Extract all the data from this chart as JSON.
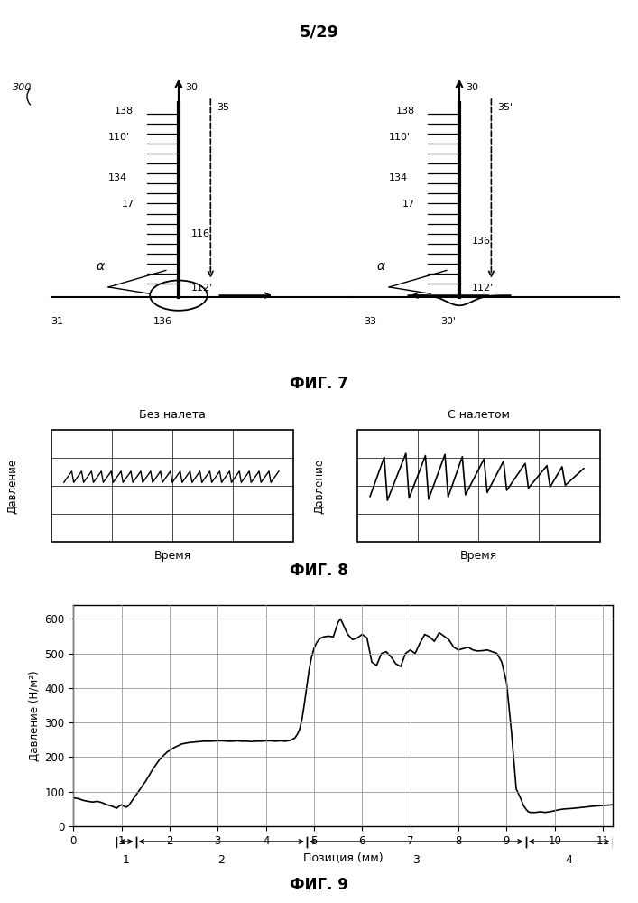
{
  "page_label": "5/29",
  "fig7_caption": "ФИГ. 7",
  "fig8_left_title": "Без налета",
  "fig8_right_title": "С налетом",
  "fig8_ylabel": "Давление",
  "fig8_xlabel": "Время",
  "fig8_caption": "ФИГ. 8",
  "fig9_ylabel": "Давление (Н/м²)",
  "fig9_xlabel": "Позиция (мм)",
  "fig9_caption": "ФИГ. 9",
  "fig9_xlim": [
    0,
    11.2
  ],
  "fig9_ylim": [
    0,
    640
  ],
  "fig9_yticks": [
    0,
    100,
    200,
    300,
    400,
    500,
    600
  ],
  "fig9_xticks": [
    0,
    1,
    2,
    3,
    4,
    5,
    6,
    7,
    8,
    9,
    10,
    11
  ],
  "fig9_data_x": [
    0.0,
    0.1,
    0.2,
    0.3,
    0.4,
    0.5,
    0.6,
    0.7,
    0.8,
    0.85,
    0.9,
    0.95,
    1.0,
    1.05,
    1.1,
    1.15,
    1.2,
    1.35,
    1.5,
    1.65,
    1.8,
    1.95,
    2.1,
    2.25,
    2.4,
    2.55,
    2.7,
    2.85,
    3.0,
    3.1,
    3.2,
    3.3,
    3.4,
    3.5,
    3.6,
    3.7,
    3.8,
    3.9,
    4.0,
    4.1,
    4.2,
    4.3,
    4.4,
    4.5,
    4.6,
    4.65,
    4.7,
    4.75,
    4.8,
    4.85,
    4.9,
    4.95,
    5.0,
    5.05,
    5.1,
    5.15,
    5.2,
    5.3,
    5.4,
    5.5,
    5.55,
    5.6,
    5.65,
    5.7,
    5.8,
    5.9,
    6.0,
    6.1,
    6.2,
    6.3,
    6.4,
    6.5,
    6.6,
    6.7,
    6.8,
    6.9,
    7.0,
    7.1,
    7.2,
    7.3,
    7.4,
    7.5,
    7.6,
    7.7,
    7.8,
    7.9,
    8.0,
    8.1,
    8.2,
    8.3,
    8.4,
    8.5,
    8.6,
    8.7,
    8.8,
    8.9,
    9.0,
    9.1,
    9.2,
    9.3,
    9.35,
    9.4,
    9.45,
    9.5,
    9.6,
    9.7,
    9.8,
    9.9,
    10.0,
    10.1,
    10.2,
    10.4,
    10.6,
    10.8,
    11.0,
    11.2
  ],
  "fig9_data_y": [
    82,
    80,
    75,
    72,
    70,
    72,
    68,
    62,
    58,
    55,
    52,
    58,
    62,
    58,
    55,
    60,
    70,
    100,
    130,
    165,
    195,
    215,
    228,
    238,
    242,
    244,
    246,
    246,
    247,
    247,
    246,
    246,
    247,
    246,
    246,
    245,
    246,
    246,
    247,
    247,
    246,
    247,
    246,
    248,
    255,
    265,
    280,
    310,
    355,
    405,
    455,
    490,
    515,
    530,
    540,
    545,
    548,
    550,
    548,
    590,
    600,
    585,
    570,
    555,
    540,
    545,
    555,
    545,
    475,
    465,
    500,
    505,
    490,
    470,
    462,
    500,
    510,
    500,
    530,
    555,
    548,
    535,
    560,
    550,
    540,
    518,
    510,
    514,
    518,
    510,
    507,
    508,
    510,
    505,
    500,
    475,
    415,
    275,
    108,
    78,
    60,
    50,
    42,
    40,
    40,
    42,
    40,
    42,
    45,
    48,
    50,
    52,
    55,
    58,
    60,
    62
  ],
  "fig9_zones": [
    [
      0.9,
      1.3,
      "1"
    ],
    [
      1.3,
      4.85,
      "2"
    ],
    [
      4.85,
      9.4,
      "3"
    ],
    [
      9.4,
      11.2,
      "4"
    ]
  ],
  "background_color": "#ffffff",
  "grid_color": "#aaaaaa"
}
